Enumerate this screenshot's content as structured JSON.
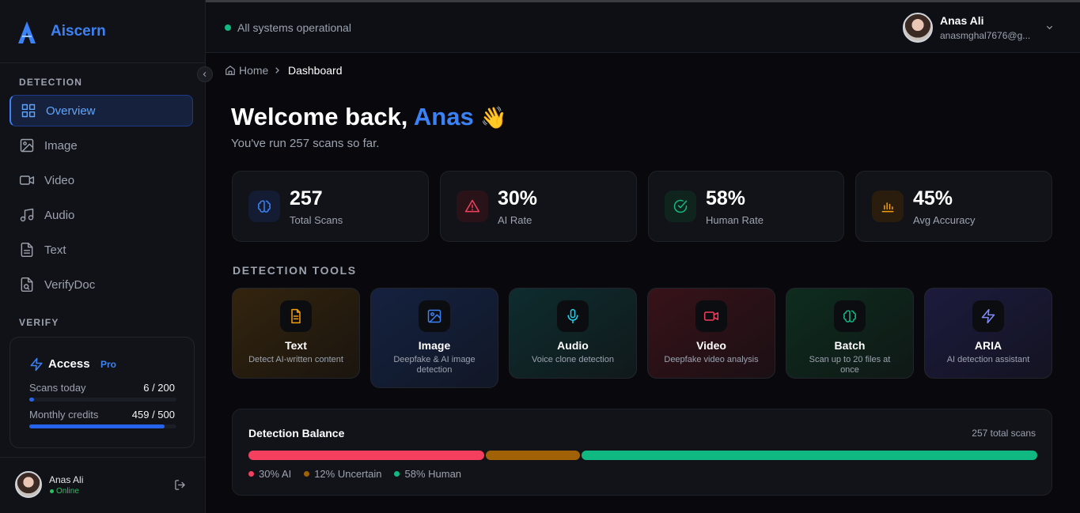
{
  "sidebar": {
    "brand": "Aiscern",
    "sections": [
      {
        "title": "DETECTION",
        "items": [
          "Overview",
          "Image",
          "Video",
          "Audio",
          "Text",
          "VerifyDoc"
        ]
      },
      {
        "title": "VERIFY"
      }
    ],
    "access": {
      "title": "Access",
      "badge": "Pro",
      "meters": [
        {
          "label": "Scans today",
          "value_label": "6 / 200",
          "used": 6,
          "limit": 200
        },
        {
          "label": "Monthly credits",
          "value_label": "459 / 500",
          "used": 459,
          "limit": 500
        }
      ]
    },
    "user": {
      "name": "Anas Ali",
      "status": "Online"
    }
  },
  "topbar": {
    "status": "All systems operational",
    "user": {
      "name": "Anas Ali",
      "email": "anasmghal7676@g..."
    }
  },
  "breadcrumb": [
    "Home",
    "Dashboard"
  ],
  "welcome": {
    "greeting": "Welcome back,",
    "name": "Anas",
    "emoji": "👋",
    "subtitle": "You've run 257 scans so far."
  },
  "stats": [
    {
      "value": "257",
      "label": "Total Scans"
    },
    {
      "value": "30%",
      "label": "AI Rate"
    },
    {
      "value": "58%",
      "label": "Human Rate"
    },
    {
      "value": "45%",
      "label": "Avg Accuracy"
    }
  ],
  "tools": {
    "title": "DETECTION TOOLS",
    "items": [
      {
        "name": "Text",
        "description": "Detect AI-written content"
      },
      {
        "name": "Image",
        "description": "Deepfake & AI image detection"
      },
      {
        "name": "Audio",
        "description": "Voice clone detection"
      },
      {
        "name": "Video",
        "description": "Deepfake video analysis"
      },
      {
        "name": "Batch",
        "description": "Scan up to 20 files at once"
      },
      {
        "name": "ARIA",
        "description": "AI detection assistant"
      }
    ]
  },
  "balance": {
    "title": "Detection Balance",
    "total": "257 total scans",
    "segments": [
      {
        "label": "30% AI",
        "value": 30,
        "color": "#f43f5e"
      },
      {
        "label": "12% Uncertain",
        "value": 12,
        "color": "#a16207"
      },
      {
        "label": "58% Human",
        "value": 58,
        "color": "#10b981"
      }
    ]
  }
}
